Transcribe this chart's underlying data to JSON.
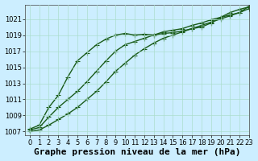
{
  "title": "Graphe pression niveau de la mer (hPa)",
  "background_color": "#cceeff",
  "plot_bg": "#cceeff",
  "grid_color": "#aaddcc",
  "line_color": "#1a5c1a",
  "xlim": [
    -0.5,
    23
  ],
  "ylim": [
    1006.5,
    1022.8
  ],
  "yticks": [
    1007,
    1009,
    1011,
    1013,
    1015,
    1017,
    1019,
    1021
  ],
  "xticks": [
    0,
    1,
    2,
    3,
    4,
    5,
    6,
    7,
    8,
    9,
    10,
    11,
    12,
    13,
    14,
    15,
    16,
    17,
    18,
    19,
    20,
    21,
    22,
    23
  ],
  "series": [
    [
      1007.3,
      1007.8,
      1010.0,
      1011.5,
      1013.8,
      1015.8,
      1016.8,
      1017.8,
      1018.5,
      1019.0,
      1019.2,
      1019.0,
      1019.1,
      1019.0,
      1019.2,
      1019.3,
      1019.5,
      1019.8,
      1020.0,
      1020.5,
      1021.2,
      1021.8,
      1022.2,
      1022.5
    ],
    [
      1007.2,
      1007.5,
      1008.8,
      1010.0,
      1011.0,
      1012.0,
      1013.2,
      1014.5,
      1015.8,
      1017.0,
      1017.8,
      1018.2,
      1018.6,
      1019.0,
      1019.4,
      1019.6,
      1019.8,
      1020.2,
      1020.5,
      1020.9,
      1021.2,
      1021.5,
      1021.8,
      1022.3
    ],
    [
      1007.0,
      1007.2,
      1007.8,
      1008.5,
      1009.2,
      1010.0,
      1011.0,
      1012.0,
      1013.2,
      1014.5,
      1015.5,
      1016.5,
      1017.3,
      1018.0,
      1018.6,
      1019.0,
      1019.4,
      1019.8,
      1020.2,
      1020.6,
      1021.0,
      1021.4,
      1021.8,
      1022.6
    ]
  ],
  "marker": "+",
  "markersize": 4,
  "linewidth": 1.0,
  "title_fontsize": 8,
  "tick_fontsize": 6
}
